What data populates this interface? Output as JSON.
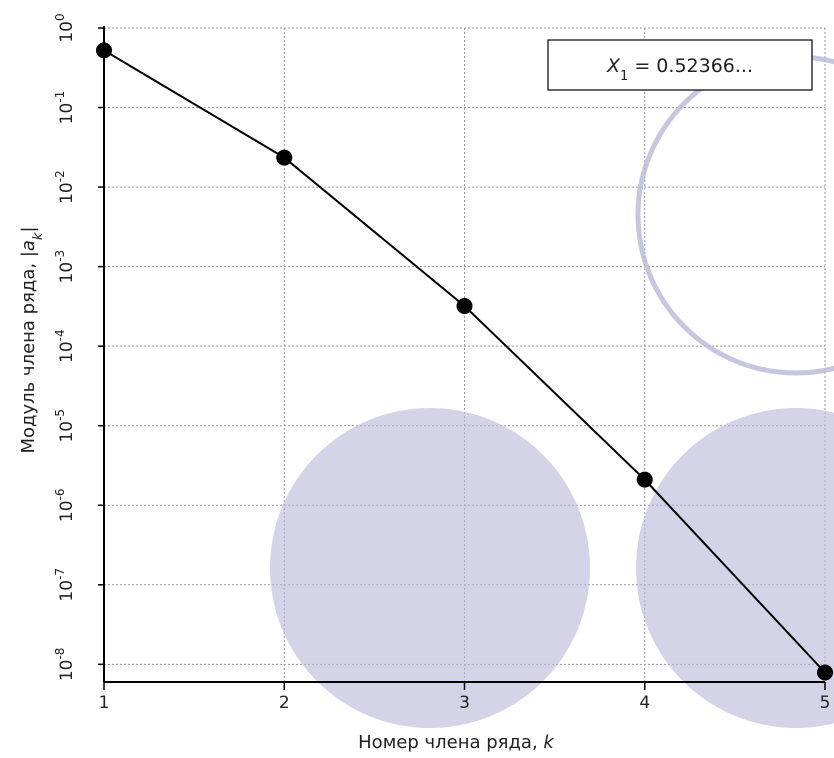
{
  "chart_data": {
    "type": "line",
    "x": [
      1,
      2,
      3,
      4,
      5
    ],
    "series": [
      {
        "values": [
          0.52366,
          0.0235,
          0.00032,
          2.1e-06,
          7.9e-09
        ]
      }
    ],
    "xlabel": "Номер члена ряда, ",
    "xlabel_var": "k",
    "ylabel": "Модуль члена ряда, |",
    "ylabel_var": "a",
    "ylabel_sub": "k",
    "ylabel_end": "|",
    "xlim": [
      1,
      5
    ],
    "ylim": [
      6e-09,
      1
    ],
    "yscale": "log",
    "x_ticks": [
      "1",
      "2",
      "3",
      "4",
      "5"
    ],
    "y_ticks": [
      {
        "base": "10",
        "exp": "0"
      },
      {
        "base": "10",
        "exp": "-1"
      },
      {
        "base": "10",
        "exp": "-2"
      },
      {
        "base": "10",
        "exp": "-3"
      },
      {
        "base": "10",
        "exp": "-4"
      },
      {
        "base": "10",
        "exp": "-5"
      },
      {
        "base": "10",
        "exp": "-6"
      },
      {
        "base": "10",
        "exp": "-7"
      },
      {
        "base": "10",
        "exp": "-8"
      }
    ],
    "grid": true,
    "annotation": {
      "var": "X",
      "sub": "1",
      "text": " = 0.52366..."
    },
    "colors": {
      "series": "#000000",
      "grid": "#9a9a9a",
      "decoration": "#b9b8d9"
    }
  }
}
